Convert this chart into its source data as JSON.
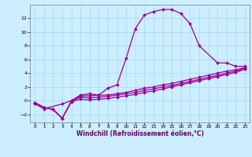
{
  "bg_color": "#cceeff",
  "grid_color": "#aaddee",
  "line_color": "#990099",
  "marker": "D",
  "marker_size": 2.0,
  "line_width": 0.9,
  "xlabel": "Windchill (Refroidissement éolien,°C)",
  "xlabel_fontsize": 5.5,
  "xlabel_color": "#660066",
  "xlim": [
    -0.5,
    23.5
  ],
  "ylim": [
    -3.2,
    14.0
  ],
  "xticks": [
    0,
    1,
    2,
    3,
    4,
    5,
    6,
    7,
    8,
    9,
    10,
    11,
    12,
    13,
    14,
    15,
    16,
    17,
    18,
    19,
    20,
    21,
    22,
    23
  ],
  "yticks": [
    -2,
    0,
    2,
    4,
    6,
    8,
    10,
    12
  ],
  "series1_x": [
    0,
    1,
    3,
    4,
    5,
    6,
    7,
    8,
    9,
    10,
    11,
    12,
    13,
    14,
    15,
    16,
    17,
    18,
    20,
    21,
    22,
    23
  ],
  "series1_y": [
    -0.5,
    -1.2,
    -0.5,
    0.0,
    0.8,
    1.0,
    0.8,
    1.8,
    2.3,
    6.2,
    10.5,
    12.5,
    13.0,
    13.3,
    13.3,
    12.7,
    11.2,
    8.0,
    5.5,
    5.5,
    5.0,
    5.0
  ],
  "series2_x": [
    0,
    1,
    2,
    3,
    4,
    5,
    6,
    7,
    8,
    9,
    10,
    11,
    12,
    13,
    14,
    15,
    16,
    17,
    18,
    19,
    20,
    21,
    22,
    23
  ],
  "series2_y": [
    -0.3,
    -1.0,
    -1.3,
    -2.6,
    -0.1,
    0.7,
    0.7,
    0.8,
    0.8,
    1.0,
    1.2,
    1.5,
    1.8,
    2.0,
    2.3,
    2.5,
    2.8,
    3.1,
    3.4,
    3.7,
    4.0,
    4.3,
    4.5,
    4.8
  ],
  "series3_x": [
    0,
    1,
    2,
    3,
    4,
    5,
    6,
    7,
    8,
    9,
    10,
    11,
    12,
    13,
    14,
    15,
    16,
    17,
    18,
    19,
    20,
    21,
    22,
    23
  ],
  "series3_y": [
    -0.3,
    -1.0,
    -1.3,
    -2.6,
    -0.1,
    0.5,
    0.4,
    0.5,
    0.6,
    0.8,
    1.0,
    1.2,
    1.5,
    1.7,
    2.0,
    2.2,
    2.5,
    2.8,
    3.1,
    3.4,
    3.7,
    4.0,
    4.3,
    4.7
  ],
  "series4_x": [
    0,
    1,
    2,
    3,
    4,
    5,
    6,
    7,
    8,
    9,
    10,
    11,
    12,
    13,
    14,
    15,
    16,
    17,
    18,
    19,
    20,
    21,
    22,
    23
  ],
  "series4_y": [
    -0.3,
    -1.0,
    -1.3,
    -2.6,
    -0.2,
    0.2,
    0.1,
    0.2,
    0.3,
    0.5,
    0.7,
    0.9,
    1.2,
    1.4,
    1.7,
    2.0,
    2.3,
    2.6,
    2.9,
    3.2,
    3.5,
    3.8,
    4.1,
    4.6
  ]
}
